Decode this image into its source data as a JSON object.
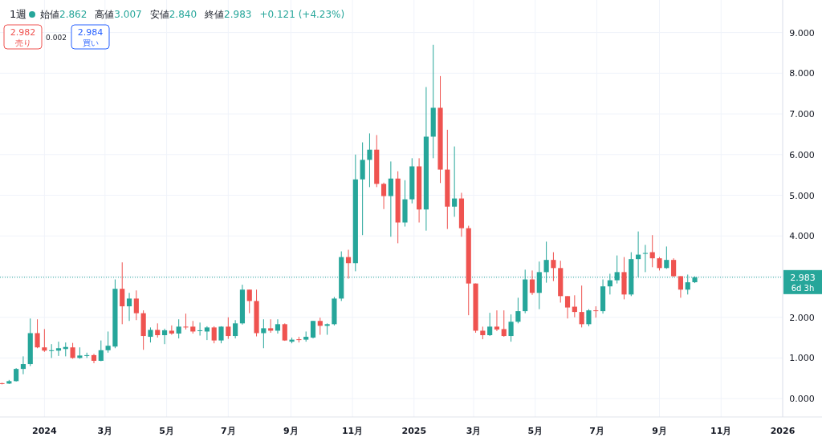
{
  "chart_data": {
    "type": "candlestick",
    "title": "1週",
    "annotations": [
      "始値2.862",
      "高値3.007",
      "安値2.840",
      "終値2.983",
      "+0.121 (+4.23%)",
      "2.982",
      "売り",
      "0.002",
      "2.984",
      "買い",
      "6d 3h"
    ],
    "x": [
      "2023-11-20",
      "2023-11-27",
      "2023-12-04",
      "2023-12-11",
      "2023-12-18",
      "2023-12-25",
      "2024-01-01",
      "2024-01-08",
      "2024-01-15",
      "2024-01-22",
      "2024-01-29",
      "2024-02-05",
      "2024-02-12",
      "2024-02-19",
      "2024-02-26",
      "2024-03-04",
      "2024-03-11",
      "2024-03-18",
      "2024-03-25",
      "2024-04-01",
      "2024-04-08",
      "2024-04-15",
      "2024-04-22",
      "2024-04-29",
      "2024-05-06",
      "2024-05-13",
      "2024-05-20",
      "2024-05-27",
      "2024-06-03",
      "2024-06-10",
      "2024-06-17",
      "2024-06-24",
      "2024-07-01",
      "2024-07-08",
      "2024-07-15",
      "2024-07-22",
      "2024-07-29",
      "2024-08-05",
      "2024-08-12",
      "2024-08-19",
      "2024-08-26",
      "2024-09-02",
      "2024-09-09",
      "2024-09-16",
      "2024-09-23",
      "2024-09-30",
      "2024-10-07",
      "2024-10-14",
      "2024-10-21",
      "2024-10-28",
      "2024-11-04",
      "2024-11-11",
      "2024-11-18",
      "2024-11-25",
      "2024-12-02",
      "2024-12-09",
      "2024-12-16",
      "2024-12-23",
      "2024-12-30",
      "2025-01-06",
      "2025-01-13",
      "2025-01-20",
      "2025-01-27",
      "2025-02-03",
      "2025-02-10",
      "2025-02-17",
      "2025-02-24",
      "2025-03-03",
      "2025-03-10",
      "2025-03-17",
      "2025-03-24",
      "2025-03-31",
      "2025-04-07",
      "2025-04-14",
      "2025-04-21",
      "2025-04-28",
      "2025-05-05",
      "2025-05-12",
      "2025-05-19",
      "2025-05-26",
      "2025-06-02",
      "2025-06-09",
      "2025-06-16",
      "2025-06-23",
      "2025-06-30",
      "2025-07-07",
      "2025-07-14",
      "2025-07-21",
      "2025-07-28",
      "2025-08-04",
      "2025-08-11",
      "2025-08-18",
      "2025-08-25",
      "2025-09-01",
      "2025-09-08",
      "2025-09-15",
      "2025-09-22",
      "2025-09-29",
      "2025-10-06"
    ],
    "ohlc": [
      [
        0.38,
        0.39,
        0.35,
        0.36
      ],
      [
        0.37,
        0.46,
        0.36,
        0.43
      ],
      [
        0.43,
        0.75,
        0.42,
        0.73
      ],
      [
        0.73,
        1.04,
        0.6,
        0.85
      ],
      [
        0.85,
        1.97,
        0.8,
        1.61
      ],
      [
        1.61,
        1.95,
        1.24,
        1.26
      ],
      [
        1.26,
        1.71,
        1.15,
        1.18
      ],
      [
        1.17,
        1.34,
        1.0,
        1.19
      ],
      [
        1.18,
        1.4,
        1.05,
        1.24
      ],
      [
        1.22,
        1.38,
        1.04,
        1.27
      ],
      [
        1.26,
        1.37,
        0.98,
        1.0
      ],
      [
        1.0,
        1.26,
        0.98,
        1.06
      ],
      [
        1.06,
        1.13,
        1.0,
        1.07
      ],
      [
        1.07,
        1.1,
        0.87,
        0.93
      ],
      [
        0.93,
        1.43,
        0.92,
        1.19
      ],
      [
        1.19,
        1.65,
        1.13,
        1.3
      ],
      [
        1.28,
        2.93,
        1.24,
        2.7
      ],
      [
        2.7,
        3.35,
        1.83,
        2.27
      ],
      [
        2.27,
        2.6,
        1.91,
        2.46
      ],
      [
        2.46,
        2.66,
        1.93,
        2.1
      ],
      [
        2.1,
        2.17,
        1.2,
        1.54
      ],
      [
        1.52,
        1.75,
        1.38,
        1.69
      ],
      [
        1.69,
        1.85,
        1.5,
        1.56
      ],
      [
        1.56,
        1.72,
        1.34,
        1.68
      ],
      [
        1.67,
        1.8,
        1.57,
        1.6
      ],
      [
        1.6,
        1.95,
        1.48,
        1.77
      ],
      [
        1.77,
        2.09,
        1.7,
        1.75
      ],
      [
        1.77,
        1.91,
        1.6,
        1.65
      ],
      [
        1.66,
        1.87,
        1.55,
        1.68
      ],
      [
        1.65,
        1.78,
        1.44,
        1.75
      ],
      [
        1.75,
        1.78,
        1.36,
        1.43
      ],
      [
        1.43,
        1.78,
        1.36,
        1.77
      ],
      [
        1.77,
        2.0,
        1.47,
        1.54
      ],
      [
        1.54,
        1.93,
        1.48,
        1.85
      ],
      [
        1.85,
        2.8,
        1.82,
        2.68
      ],
      [
        2.68,
        2.68,
        2.1,
        2.4
      ],
      [
        2.4,
        2.68,
        1.53,
        1.61
      ],
      [
        1.61,
        1.95,
        1.24,
        1.73
      ],
      [
        1.73,
        1.95,
        1.62,
        1.67
      ],
      [
        1.67,
        1.95,
        1.6,
        1.83
      ],
      [
        1.83,
        1.85,
        1.42,
        1.43
      ],
      [
        1.4,
        1.5,
        1.36,
        1.45
      ],
      [
        1.46,
        1.52,
        1.38,
        1.45
      ],
      [
        1.45,
        1.65,
        1.4,
        1.52
      ],
      [
        1.5,
        1.91,
        1.48,
        1.91
      ],
      [
        1.91,
        1.99,
        1.57,
        1.79
      ],
      [
        1.79,
        1.85,
        1.57,
        1.83
      ],
      [
        1.83,
        2.5,
        1.8,
        2.46
      ],
      [
        2.46,
        3.62,
        2.4,
        3.48
      ],
      [
        3.48,
        3.66,
        2.95,
        3.33
      ],
      [
        3.33,
        6.0,
        3.13,
        5.39
      ],
      [
        5.39,
        6.3,
        4.02,
        5.87
      ],
      [
        5.87,
        6.52,
        5.2,
        6.12
      ],
      [
        6.12,
        6.48,
        5.2,
        5.28
      ],
      [
        5.28,
        5.31,
        4.66,
        4.98
      ],
      [
        4.98,
        5.83,
        3.98,
        5.41
      ],
      [
        5.41,
        5.59,
        3.82,
        4.33
      ],
      [
        4.33,
        5.37,
        4.23,
        4.9
      ],
      [
        4.9,
        5.91,
        4.8,
        5.71
      ],
      [
        5.71,
        5.91,
        4.33,
        4.65
      ],
      [
        4.65,
        7.66,
        4.13,
        6.44
      ],
      [
        6.44,
        8.7,
        5.91,
        7.15
      ],
      [
        7.15,
        7.93,
        5.3,
        5.63
      ],
      [
        5.63,
        6.61,
        4.17,
        4.72
      ],
      [
        4.72,
        6.2,
        4.47,
        4.92
      ],
      [
        4.92,
        5.06,
        3.98,
        4.19
      ],
      [
        4.19,
        4.25,
        2.05,
        2.83
      ],
      [
        2.83,
        2.83,
        1.62,
        1.67
      ],
      [
        1.67,
        1.77,
        1.46,
        1.56
      ],
      [
        1.56,
        2.11,
        1.54,
        1.77
      ],
      [
        1.77,
        2.17,
        1.66,
        1.7
      ],
      [
        1.71,
        2.17,
        1.52,
        1.54
      ],
      [
        1.54,
        2.07,
        1.4,
        1.89
      ],
      [
        1.89,
        2.48,
        1.85,
        2.15
      ],
      [
        2.15,
        3.17,
        2.1,
        2.93
      ],
      [
        2.93,
        3.15,
        2.55,
        2.6
      ],
      [
        2.6,
        3.37,
        2.2,
        3.11
      ],
      [
        3.11,
        3.86,
        2.85,
        3.41
      ],
      [
        3.41,
        3.6,
        2.89,
        3.21
      ],
      [
        3.21,
        3.39,
        2.36,
        2.52
      ],
      [
        2.52,
        2.52,
        1.97,
        2.24
      ],
      [
        2.26,
        2.54,
        2.0,
        2.13
      ],
      [
        2.13,
        2.78,
        1.75,
        1.83
      ],
      [
        1.83,
        2.2,
        1.78,
        2.17
      ],
      [
        2.17,
        2.27,
        1.99,
        2.15
      ],
      [
        2.15,
        2.93,
        2.09,
        2.76
      ],
      [
        2.76,
        3.07,
        2.56,
        2.91
      ],
      [
        2.91,
        3.52,
        2.83,
        3.11
      ],
      [
        3.11,
        3.48,
        2.44,
        2.56
      ],
      [
        2.56,
        3.6,
        2.52,
        3.43
      ],
      [
        3.43,
        4.11,
        2.99,
        3.54
      ],
      [
        3.56,
        3.78,
        3.11,
        3.58
      ],
      [
        3.6,
        4.02,
        3.23,
        3.45
      ],
      [
        3.45,
        3.48,
        3.15,
        3.21
      ],
      [
        3.21,
        3.74,
        3.19,
        3.41
      ],
      [
        3.41,
        3.45,
        2.99,
        3.01
      ],
      [
        3.01,
        3.01,
        2.48,
        2.68
      ],
      [
        2.68,
        3.05,
        2.56,
        2.86
      ],
      [
        2.862,
        3.007,
        2.84,
        2.983
      ]
    ],
    "xlim": [
      "2023-11-18",
      "2026-01-01"
    ],
    "xticks": [
      {
        "value": "2024-01-01",
        "label": "2024"
      },
      {
        "value": "2024-03-01",
        "label": "3月"
      },
      {
        "value": "2024-05-01",
        "label": "5月"
      },
      {
        "value": "2024-07-01",
        "label": "7月"
      },
      {
        "value": "2024-09-01",
        "label": "9月"
      },
      {
        "value": "2024-11-01",
        "label": "11月"
      },
      {
        "value": "2025-01-01",
        "label": "2025"
      },
      {
        "value": "2025-03-01",
        "label": "3月"
      },
      {
        "value": "2025-05-01",
        "label": "5月"
      },
      {
        "value": "2025-07-01",
        "label": "7月"
      },
      {
        "value": "2025-09-01",
        "label": "9月"
      },
      {
        "value": "2025-11-01",
        "label": "11月"
      },
      {
        "value": "2026-01-01",
        "label": "2026"
      }
    ],
    "ylim": [
      -0.45,
      9.8
    ],
    "yticks": [
      {
        "value": 0,
        "label": "0.000"
      },
      {
        "value": 1,
        "label": "1.000"
      },
      {
        "value": 2,
        "label": "2.000"
      },
      {
        "value": 3,
        "label": null
      },
      {
        "value": 4,
        "label": "4.000"
      },
      {
        "value": 5,
        "label": "5.000"
      },
      {
        "value": 6,
        "label": "6.000"
      },
      {
        "value": 7,
        "label": "7.000"
      },
      {
        "value": 8,
        "label": "8.000"
      },
      {
        "value": 9,
        "label": "9.000"
      }
    ],
    "grid": true,
    "ref_lines": [
      {
        "axis": "y",
        "value": 2.983,
        "label": "2.983",
        "color": "#26a69a",
        "line_style": "dotted"
      }
    ]
  }
}
